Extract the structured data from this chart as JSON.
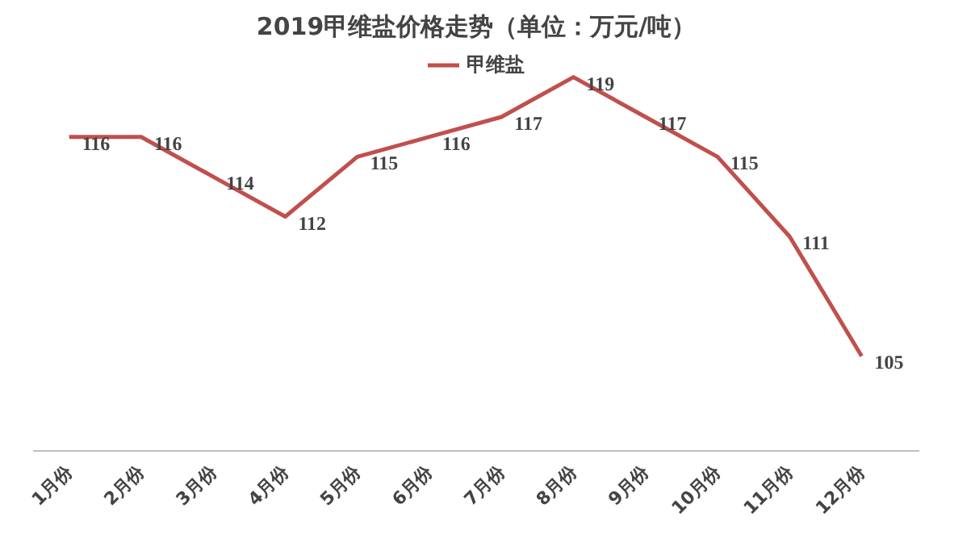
{
  "chart_data": {
    "type": "line",
    "title": "2019甲维盐价格走势（单位：万元/吨）",
    "categories": [
      "1月份",
      "2月份",
      "3月份",
      "4月份",
      "5月份",
      "6月份",
      "7月份",
      "8月份",
      "9月份",
      "10月份",
      "11月份",
      "12月份"
    ],
    "series": [
      {
        "name": "甲维盐",
        "color": "#c0504d",
        "values": [
          116,
          116,
          114,
          112,
          115,
          116,
          117,
          119,
          117,
          115,
          111,
          105
        ]
      }
    ],
    "data_labels": true,
    "legend": "top",
    "grid": false,
    "marker": "none",
    "line_style": "solid",
    "tick_labels": "x"
  }
}
